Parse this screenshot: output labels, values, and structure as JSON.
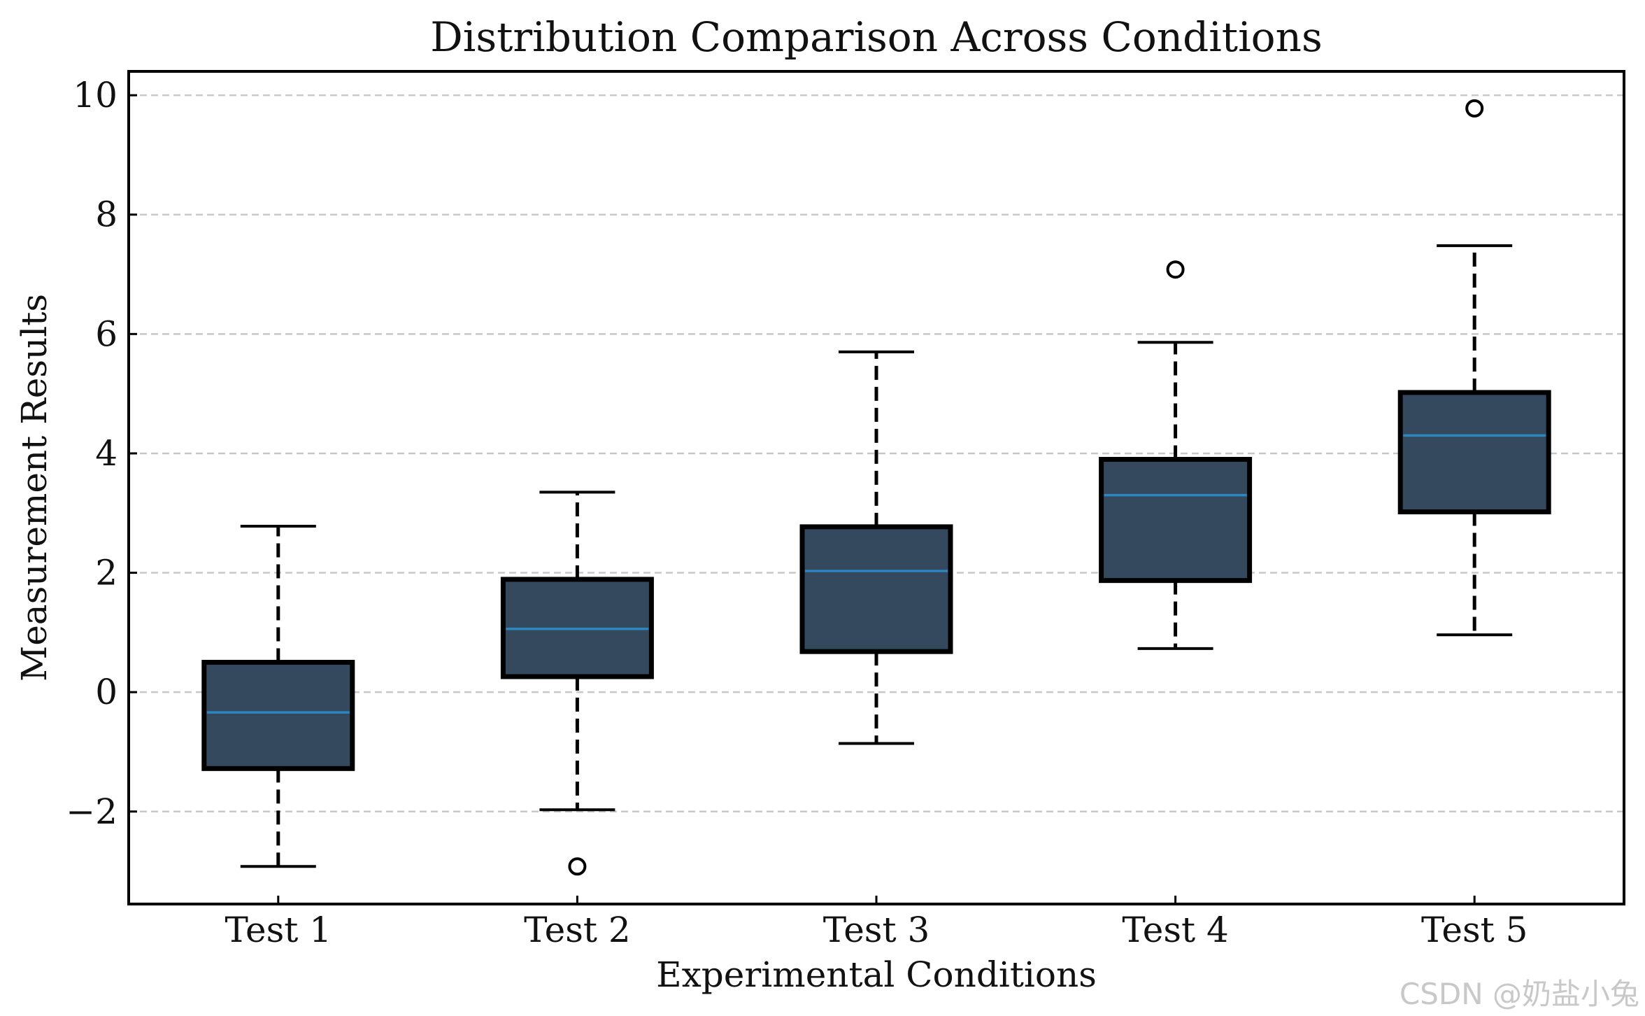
{
  "chart_data": {
    "type": "box",
    "title": "Distribution Comparison Across Conditions",
    "xlabel": "Experimental Conditions",
    "ylabel": "Measurement Results",
    "ylim": [
      -3.55,
      10.4
    ],
    "yticks": [
      -2,
      0,
      2,
      4,
      6,
      8,
      10
    ],
    "ytick_labels": [
      "−2",
      "0",
      "2",
      "4",
      "6",
      "8",
      "10"
    ],
    "grid": "horizontal dashed",
    "categories": [
      "Test 1",
      "Test 2",
      "Test 3",
      "Test 4",
      "Test 5"
    ],
    "boxes": [
      {
        "name": "Test 1",
        "whisker_low": -2.92,
        "q1": -1.28,
        "median": -0.34,
        "q3": 0.5,
        "whisker_high": 2.78,
        "outliers": []
      },
      {
        "name": "Test 2",
        "whisker_low": -1.97,
        "q1": 0.26,
        "median": 1.06,
        "q3": 1.89,
        "whisker_high": 3.35,
        "outliers": [
          -2.92
        ]
      },
      {
        "name": "Test 3",
        "whisker_low": -0.86,
        "q1": 0.68,
        "median": 2.03,
        "q3": 2.77,
        "whisker_high": 5.7,
        "outliers": []
      },
      {
        "name": "Test 4",
        "whisker_low": 0.73,
        "q1": 1.87,
        "median": 3.3,
        "q3": 3.9,
        "whisker_high": 5.86,
        "outliers": [
          7.08
        ]
      },
      {
        "name": "Test 5",
        "whisker_low": 0.96,
        "q1": 3.02,
        "median": 4.3,
        "q3": 5.02,
        "whisker_high": 7.48,
        "outliers": [
          9.78
        ]
      }
    ],
    "colors": {
      "box_fill": "#34495e",
      "box_edge": "#000000",
      "median": "#2e86c1",
      "grid": "#c8c8c8",
      "whisker": "#000000"
    }
  },
  "watermark": "CSDN @奶盐小兔"
}
